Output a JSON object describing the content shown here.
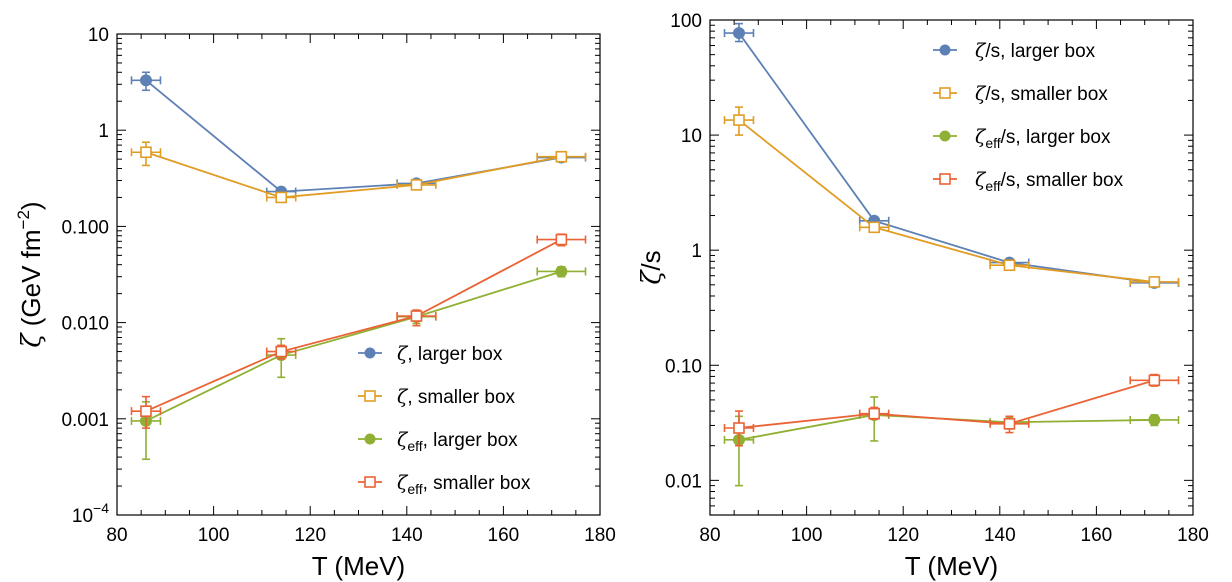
{
  "chart_data": [
    {
      "type": "line",
      "id": "left",
      "yscale": "log",
      "xlim": [
        80,
        180
      ],
      "ylim": [
        0.0001,
        10
      ],
      "xticks": [
        80,
        100,
        120,
        140,
        160,
        180
      ],
      "xtick_labels": [
        "80",
        "100",
        "120",
        "140",
        "160",
        "180"
      ],
      "yticks": [
        0.0001,
        0.001,
        0.01,
        0.1,
        1,
        10
      ],
      "ytick_labels": [
        "10^-4",
        "0.001",
        "0.010",
        "0.100",
        "1",
        "10"
      ],
      "xlabel": "T (MeV)",
      "ylabel": "ζ (GeV fm^-2)",
      "grid": false,
      "legend": "bottom-right",
      "series": [
        {
          "name": "ζ, larger box",
          "marker": "filled-circle",
          "color": "#5e81b5",
          "points": [
            {
              "x": 86,
              "y": 3.3,
              "xerr": 3,
              "ylo": 2.6,
              "yhi": 4.0
            },
            {
              "x": 114,
              "y": 0.23,
              "xerr": 3,
              "ylo": 0.21,
              "yhi": 0.25
            },
            {
              "x": 142,
              "y": 0.28,
              "xerr": 4,
              "ylo": 0.26,
              "yhi": 0.3
            },
            {
              "x": 172,
              "y": 0.52,
              "xerr": 5,
              "ylo": 0.49,
              "yhi": 0.55
            }
          ]
        },
        {
          "name": "ζ, smaller box",
          "marker": "open-square",
          "color": "#e19c24",
          "points": [
            {
              "x": 86,
              "y": 0.59,
              "xerr": 3,
              "ylo": 0.43,
              "yhi": 0.75
            },
            {
              "x": 114,
              "y": 0.2,
              "xerr": 3,
              "ylo": 0.18,
              "yhi": 0.22
            },
            {
              "x": 142,
              "y": 0.27,
              "xerr": 4,
              "ylo": 0.25,
              "yhi": 0.29
            },
            {
              "x": 172,
              "y": 0.53,
              "xerr": 5,
              "ylo": 0.5,
              "yhi": 0.56
            }
          ]
        },
        {
          "name": "ζeff, larger box",
          "name_parts": {
            "symbol": "ζ",
            "sub": "eff",
            "rest": ", larger box"
          },
          "marker": "filled-circle",
          "color": "#8fb032",
          "points": [
            {
              "x": 86,
              "y": 0.00095,
              "xerr": 3,
              "ylo": 0.00038,
              "yhi": 0.0015
            },
            {
              "x": 114,
              "y": 0.0046,
              "xerr": 3,
              "ylo": 0.0027,
              "yhi": 0.0068
            },
            {
              "x": 142,
              "y": 0.0115,
              "xerr": 4,
              "ylo": 0.0098,
              "yhi": 0.0132
            },
            {
              "x": 172,
              "y": 0.034,
              "xerr": 5,
              "ylo": 0.03,
              "yhi": 0.038
            }
          ]
        },
        {
          "name": "ζeff, smaller box",
          "name_parts": {
            "symbol": "ζ",
            "sub": "eff",
            "rest": ", smaller box"
          },
          "marker": "open-square",
          "color": "#eb6235",
          "points": [
            {
              "x": 86,
              "y": 0.0012,
              "xerr": 3,
              "ylo": 0.0008,
              "yhi": 0.0017
            },
            {
              "x": 114,
              "y": 0.005,
              "xerr": 3,
              "ylo": 0.0042,
              "yhi": 0.0058
            },
            {
              "x": 142,
              "y": 0.0117,
              "xerr": 4,
              "ylo": 0.0093,
              "yhi": 0.0135
            },
            {
              "x": 172,
              "y": 0.073,
              "xerr": 5,
              "ylo": 0.063,
              "yhi": 0.083
            }
          ]
        }
      ]
    },
    {
      "type": "line",
      "id": "right",
      "yscale": "log",
      "xlim": [
        80,
        180
      ],
      "ylim": [
        0.005,
        100
      ],
      "xticks": [
        80,
        100,
        120,
        140,
        160,
        180
      ],
      "xtick_labels": [
        "80",
        "100",
        "120",
        "140",
        "160",
        "180"
      ],
      "yticks": [
        0.01,
        0.1,
        1,
        10,
        100
      ],
      "ytick_labels": [
        "0.01",
        "0.10",
        "1",
        "10",
        "100"
      ],
      "xlabel": "T (MeV)",
      "ylabel": "ζ/s",
      "grid": false,
      "legend": "top-right",
      "series": [
        {
          "name": "ζ/s, larger box",
          "marker": "filled-circle",
          "color": "#5e81b5",
          "points": [
            {
              "x": 86,
              "y": 77,
              "xerr": 3,
              "ylo": 65,
              "yhi": 93
            },
            {
              "x": 114,
              "y": 1.8,
              "xerr": 3,
              "ylo": 1.7,
              "yhi": 1.9
            },
            {
              "x": 142,
              "y": 0.78,
              "xerr": 4,
              "ylo": 0.74,
              "yhi": 0.82
            },
            {
              "x": 172,
              "y": 0.52,
              "xerr": 5,
              "ylo": 0.49,
              "yhi": 0.55
            }
          ]
        },
        {
          "name": "ζ/s, smaller box",
          "marker": "open-square",
          "color": "#e19c24",
          "points": [
            {
              "x": 86,
              "y": 13.5,
              "xerr": 3,
              "ylo": 10,
              "yhi": 17.5
            },
            {
              "x": 114,
              "y": 1.58,
              "xerr": 3,
              "ylo": 1.5,
              "yhi": 1.66
            },
            {
              "x": 142,
              "y": 0.74,
              "xerr": 4,
              "ylo": 0.7,
              "yhi": 0.78
            },
            {
              "x": 172,
              "y": 0.53,
              "xerr": 5,
              "ylo": 0.5,
              "yhi": 0.56
            }
          ]
        },
        {
          "name": "ζeff/s, larger box",
          "name_parts": {
            "symbol": "ζ",
            "sub": "eff",
            "rest": "/s, larger box"
          },
          "marker": "filled-circle",
          "color": "#8fb032",
          "points": [
            {
              "x": 86,
              "y": 0.0225,
              "xerr": 3,
              "ylo": 0.009,
              "yhi": 0.036
            },
            {
              "x": 114,
              "y": 0.037,
              "xerr": 3,
              "ylo": 0.022,
              "yhi": 0.053
            },
            {
              "x": 142,
              "y": 0.032,
              "xerr": 4,
              "ylo": 0.028,
              "yhi": 0.036
            },
            {
              "x": 172,
              "y": 0.0335,
              "xerr": 5,
              "ylo": 0.03,
              "yhi": 0.037
            }
          ]
        },
        {
          "name": "ζeff/s, smaller box",
          "name_parts": {
            "symbol": "ζ",
            "sub": "eff",
            "rest": "/s, smaller box"
          },
          "marker": "open-square",
          "color": "#eb6235",
          "points": [
            {
              "x": 86,
              "y": 0.0285,
              "xerr": 3,
              "ylo": 0.02,
              "yhi": 0.04
            },
            {
              "x": 114,
              "y": 0.038,
              "xerr": 3,
              "ylo": 0.034,
              "yhi": 0.043
            },
            {
              "x": 142,
              "y": 0.031,
              "xerr": 4,
              "ylo": 0.026,
              "yhi": 0.036
            },
            {
              "x": 172,
              "y": 0.074,
              "xerr": 5,
              "ylo": 0.066,
              "yhi": 0.083
            }
          ]
        }
      ]
    }
  ]
}
